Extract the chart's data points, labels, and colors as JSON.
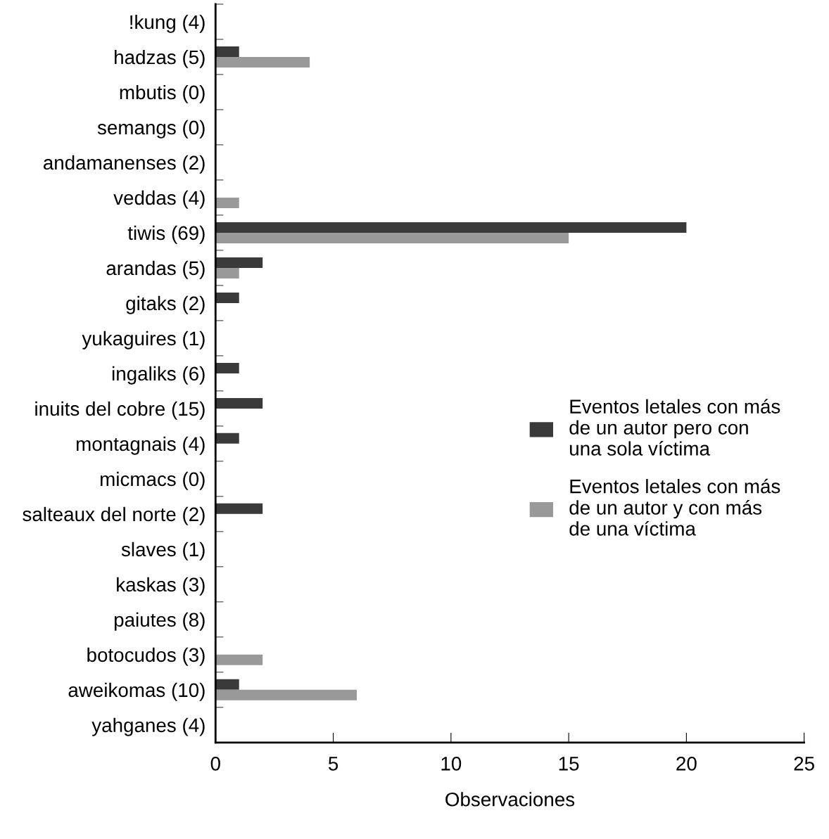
{
  "chart_data": {
    "type": "bar",
    "orientation": "horizontal",
    "xlabel": "Observaciones",
    "categories": [
      "!kung (4)",
      "hadzas (5)",
      "mbutis (0)",
      "semangs (0)",
      "andamanenses (2)",
      "veddas (4)",
      "tiwis (69)",
      "arandas (5)",
      "gitaks (2)",
      "yukaguires (1)",
      "ingaliks (6)",
      "inuits del cobre (15)",
      "montagnais (4)",
      "micmacs (0)",
      "salteaux del norte (2)",
      "slaves (1)",
      "kaskas (3)",
      "paiutes (8)",
      "botocudos (3)",
      "aweikomas (10)",
      "yahganes (4)"
    ],
    "series": [
      {
        "name": "Eventos letales con más\nde un autor pero con\nuna sola víctima",
        "color": "#3a3a3a",
        "values": [
          0,
          1,
          0,
          0,
          0,
          0,
          20,
          2,
          1,
          0,
          1,
          2,
          1,
          0,
          2,
          0,
          0,
          0,
          0,
          1,
          0
        ]
      },
      {
        "name": "Eventos letales con más\nde un autor y con más\nde una víctima",
        "color": "#999999",
        "values": [
          0,
          4,
          0,
          0,
          0,
          1,
          15,
          1,
          0,
          0,
          0,
          0,
          0,
          0,
          0,
          0,
          0,
          0,
          2,
          6,
          0
        ]
      }
    ],
    "xlim": [
      0,
      25
    ],
    "xticks": [
      0,
      5,
      10,
      15,
      20,
      25
    ],
    "grid": false,
    "legend": "right"
  }
}
